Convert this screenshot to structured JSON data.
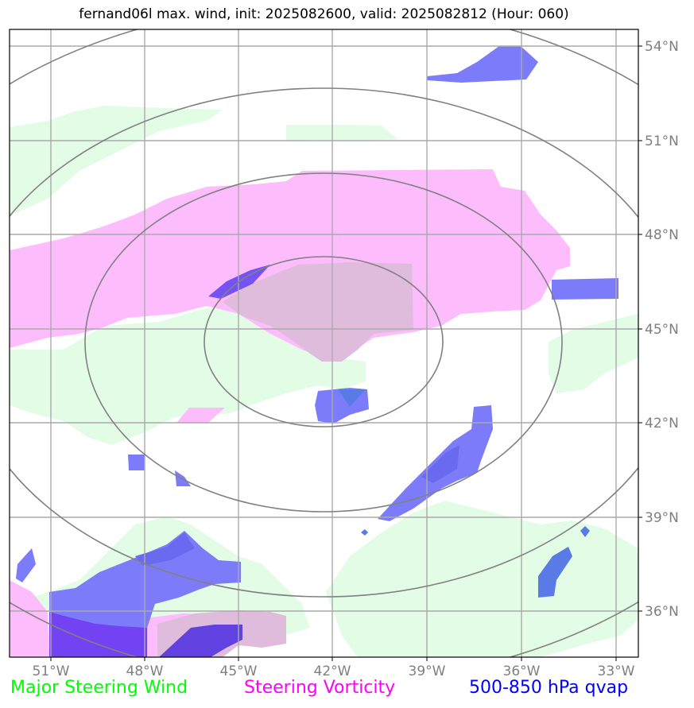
{
  "title": "fernand06l max. wind, init: 2025082600, valid: 2025082812 (Hour: 060)",
  "map": {
    "lon_labels": [
      "51°W",
      "48°W",
      "45°W",
      "42°W",
      "39°W",
      "36°W",
      "33°W"
    ],
    "lat_labels": [
      "54°N",
      "51°N",
      "48°N",
      "45°N",
      "42°N",
      "39°N",
      "36°N"
    ]
  },
  "legend": {
    "wind": {
      "label": "Major Steering Wind",
      "color": "#00ff00"
    },
    "vorticity": {
      "label": "Steering Vorticity",
      "color": "#ff00ff"
    },
    "qvap": {
      "label": "500-850 hPa qvap",
      "color": "#0000ff"
    }
  },
  "colors": {
    "wind_fill": "#e3fce6",
    "vort_fill": "#fdbdfd",
    "overlap_fill": "#dfbcdc",
    "qvap_fill": "#7c7cfb",
    "qvap_dark": "#5a5ae6",
    "grid": "#aaaaaa",
    "ring": "#808080"
  }
}
